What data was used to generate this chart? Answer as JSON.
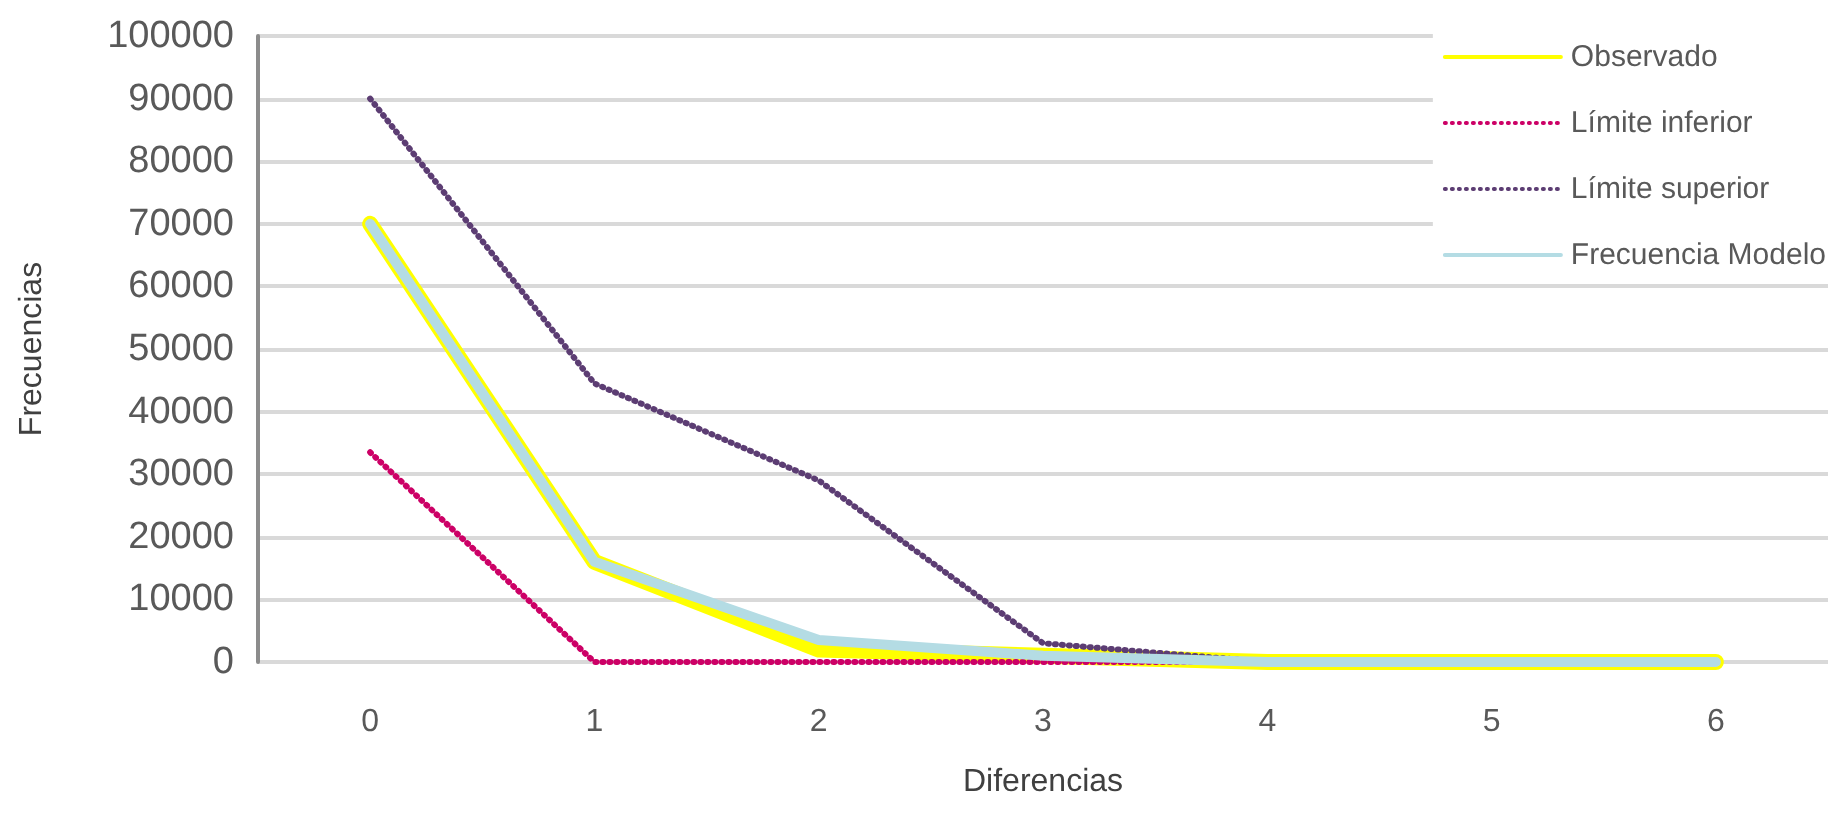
{
  "chart_data": {
    "type": "line",
    "xlabel": "Diferencias",
    "ylabel": "Frecuencias",
    "categories": [
      "0",
      "1",
      "2",
      "3",
      "4",
      "5",
      "6"
    ],
    "series": [
      {
        "name": "Observado",
        "color": "#ffff00",
        "line_style": "solid",
        "values": [
          70000,
          16000,
          2000,
          1000,
          0,
          0,
          0
        ]
      },
      {
        "name": "Límite inferior",
        "color": "#cc0066",
        "line_style": "dotted",
        "values": [
          33500,
          0,
          0,
          0,
          0,
          0,
          0
        ]
      },
      {
        "name": "Límite superior",
        "color": "#5c3d73",
        "line_style": "dotted",
        "values": [
          90000,
          44500,
          29000,
          3000,
          0,
          0,
          0
        ]
      },
      {
        "name": "Frecuencia Modelo",
        "color": "#b4dce4",
        "line_style": "solid",
        "values": [
          70000,
          16000,
          3500,
          1000,
          0,
          0,
          0
        ]
      }
    ],
    "ylim": [
      0,
      100000
    ],
    "yticks": [
      0,
      10000,
      20000,
      30000,
      40000,
      50000,
      60000,
      70000,
      80000,
      90000,
      100000
    ],
    "grid": "y",
    "legend": "top right",
    "marker": "none"
  }
}
